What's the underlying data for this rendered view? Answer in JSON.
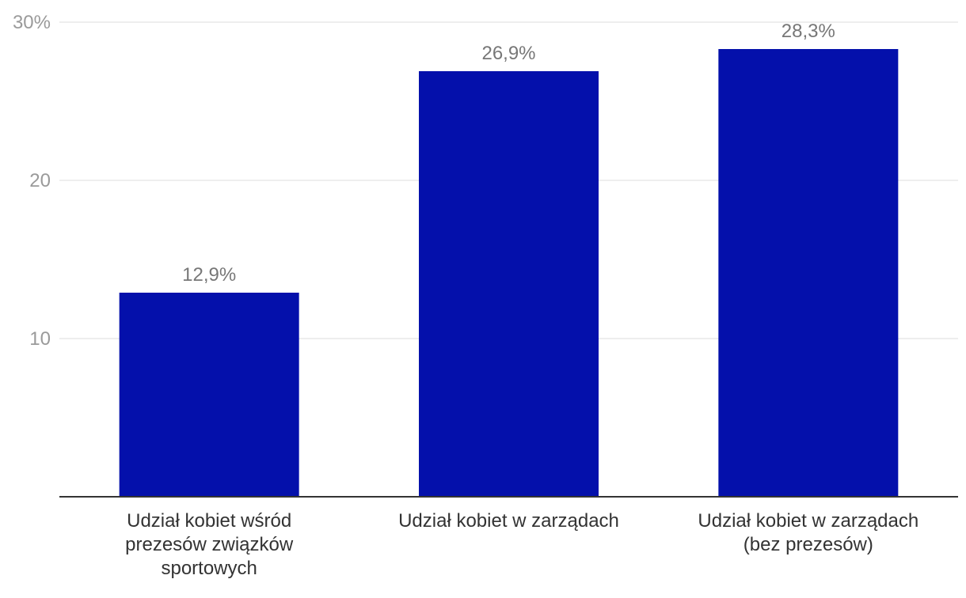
{
  "chart_data": {
    "type": "bar",
    "categories": [
      [
        "Udział kobiet wśród",
        "prezesów związków",
        "sportowych"
      ],
      [
        "Udział kobiet w zarządach"
      ],
      [
        "Udział kobiet w zarządach",
        "(bez prezesów)"
      ]
    ],
    "values": [
      12.9,
      26.9,
      28.3
    ],
    "data_labels": [
      "12,9%",
      "26,9%",
      "28,3%"
    ],
    "ylim": [
      0,
      30
    ],
    "yticks": [
      10,
      20,
      30
    ],
    "ytick_labels": [
      "10",
      "20",
      "30%"
    ],
    "bar_color": "#0410ab",
    "grid": true,
    "title": "",
    "xlabel": "",
    "ylabel": ""
  }
}
